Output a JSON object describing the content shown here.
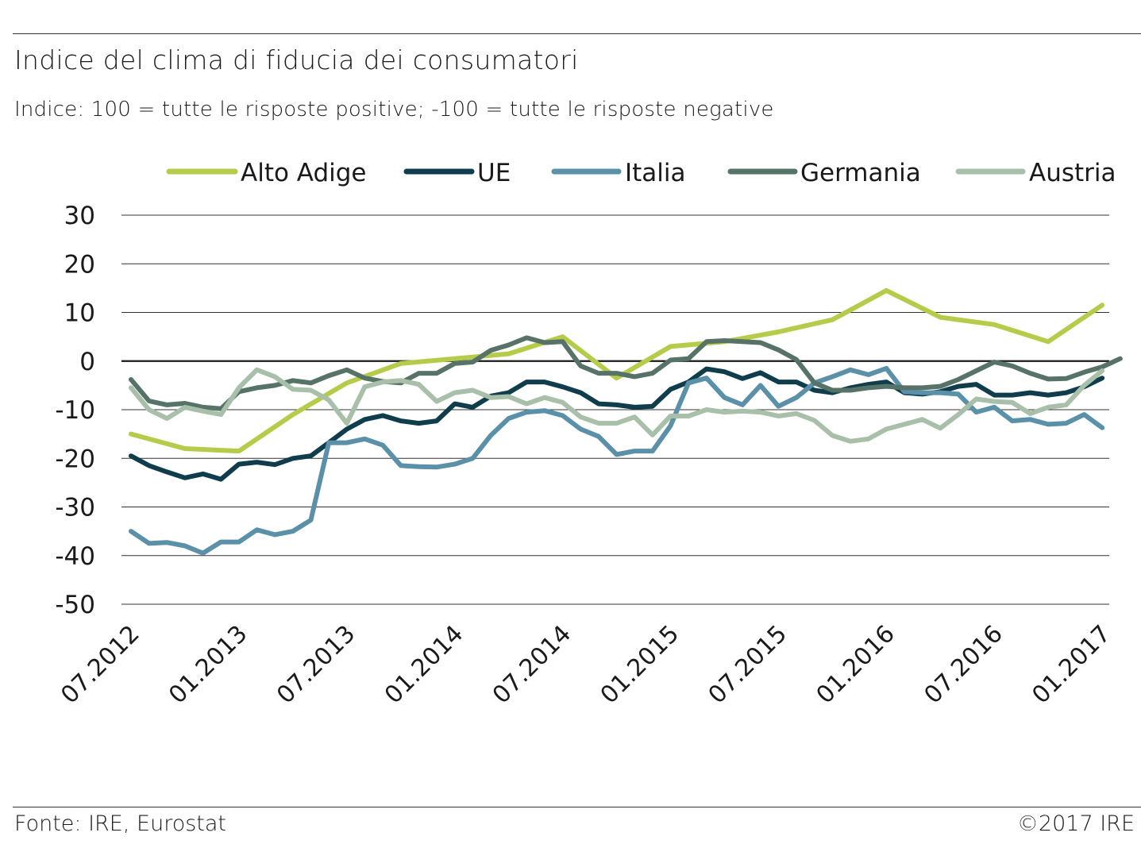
{
  "title": "Indice del clima di fiducia dei consumatori",
  "subtitle": "Indice: 100 = tutte le risposte positive; -100 =  tutte le risposte negative",
  "source": "Fonte:  IRE, Eurostat",
  "copyright": "©2017 IRE",
  "chart_data": {
    "type": "line",
    "grid": true,
    "legend_position": "top",
    "ylim": [
      -50,
      30
    ],
    "yticks": [
      30,
      20,
      10,
      0,
      -10,
      -20,
      -30,
      -40,
      -50
    ],
    "xticks": [
      {
        "label": "07.2012",
        "index": 0
      },
      {
        "label": "01.2013",
        "index": 6
      },
      {
        "label": "07.2013",
        "index": 12
      },
      {
        "label": "01.2014",
        "index": 18
      },
      {
        "label": "07.2014",
        "index": 24
      },
      {
        "label": "01.2015",
        "index": 30
      },
      {
        "label": "07.2015",
        "index": 36
      },
      {
        "label": "01.2016",
        "index": 42
      },
      {
        "label": "07.2016",
        "index": 48
      },
      {
        "label": "01.2017",
        "index": 54
      }
    ],
    "series": [
      {
        "name": "Alto Adige",
        "color": "#b5cc4a",
        "x": [
          0,
          3,
          6,
          9,
          12,
          15,
          18,
          21,
          24,
          27,
          30,
          33,
          36,
          39,
          42,
          45,
          48,
          51,
          54
        ],
        "values": [
          -15,
          -18,
          -18.5,
          -11,
          -4.5,
          -0.5,
          0.5,
          1.5,
          5,
          -3.5,
          3,
          4,
          6,
          8.5,
          14.5,
          9,
          7.5,
          4,
          11.5
        ]
      },
      {
        "name": "UE",
        "color": "#0f3d4c",
        "values": [
          -19.5,
          -21.5,
          -22.8,
          -24,
          -23.2,
          -24.3,
          -21.2,
          -20.8,
          -21.3,
          -20,
          -19.5,
          -16.8,
          -14,
          -12,
          -11.2,
          -12.3,
          -12.8,
          -12.3,
          -8.8,
          -9.5,
          -7.2,
          -6.5,
          -4.3,
          -4.3,
          -5.3,
          -6.5,
          -8.8,
          -9,
          -9.5,
          -9.3,
          -5.8,
          -4.3,
          -1.6,
          -2.2,
          -3.6,
          -2.4,
          -4.3,
          -4.3,
          -6,
          -6.5,
          -5.5,
          -4.8,
          -4.3,
          -6.5,
          -6.8,
          -6.3,
          -5.2,
          -4.8,
          -7,
          -7,
          -6.5,
          -7,
          -6.5,
          -5.3,
          -3.5
        ]
      },
      {
        "name": "Italia",
        "color": "#5a90a8",
        "values": [
          -35,
          -37.5,
          -37.3,
          -38,
          -39.5,
          -37.2,
          -37.2,
          -34.7,
          -35.7,
          -35,
          -32.7,
          -16.8,
          -16.8,
          -16,
          -17.3,
          -21.5,
          -21.7,
          -21.8,
          -21.2,
          -20,
          -15.3,
          -11.8,
          -10.5,
          -10.2,
          -11.2,
          -14,
          -15.5,
          -19.2,
          -18.5,
          -18.5,
          -13.3,
          -4.5,
          -3.5,
          -7.5,
          -9,
          -5,
          -9.3,
          -7.5,
          -4.5,
          -3.2,
          -1.8,
          -2.8,
          -1.5,
          -6.3,
          -6.5,
          -6.5,
          -6.8,
          -10.5,
          -9.5,
          -12.3,
          -12,
          -13,
          -12.8,
          -11,
          -13.7
        ]
      },
      {
        "name": "Germania",
        "color": "#577367",
        "values": [
          -3.8,
          -8.2,
          -9,
          -8.7,
          -9.5,
          -9.8,
          -6.3,
          -5.5,
          -5,
          -4,
          -4.5,
          -3,
          -1.8,
          -3.5,
          -4.2,
          -4.5,
          -2.5,
          -2.5,
          -0.5,
          -0.2,
          2.2,
          3.3,
          4.8,
          3.8,
          4,
          -1,
          -2.5,
          -2.5,
          -3.2,
          -2.5,
          0.2,
          0.5,
          4,
          4.2,
          4,
          3.8,
          2.3,
          0.3,
          -4.5,
          -6,
          -6,
          -5.5,
          -5.2,
          -5.5,
          -5.5,
          -5.2,
          -3.8,
          -2,
          -0.2,
          -1,
          -2.5,
          -3.7,
          -3.6,
          -2.3,
          -1.2,
          0.5
        ]
      },
      {
        "name": "Austria",
        "color": "#a8bfa9",
        "values": [
          -5.5,
          -10,
          -11.8,
          -9.5,
          -10.3,
          -11,
          -5.5,
          -1.8,
          -3.2,
          -5.8,
          -6,
          -8,
          -12.8,
          -5.3,
          -4.3,
          -4,
          -4.8,
          -8.3,
          -6.5,
          -6,
          -7.5,
          -7.3,
          -8.8,
          -7.5,
          -8.5,
          -11.5,
          -12.8,
          -12.8,
          -11.5,
          -15.2,
          -11.3,
          -11.3,
          -10,
          -10.5,
          -10.3,
          -10.5,
          -11.3,
          -10.8,
          -12.2,
          -15.3,
          -16.5,
          -16,
          -14,
          -13,
          -12,
          -13.8,
          -11,
          -7.8,
          -8.3,
          -8.5,
          -10.8,
          -9.5,
          -9,
          -5,
          -2
        ]
      }
    ]
  }
}
